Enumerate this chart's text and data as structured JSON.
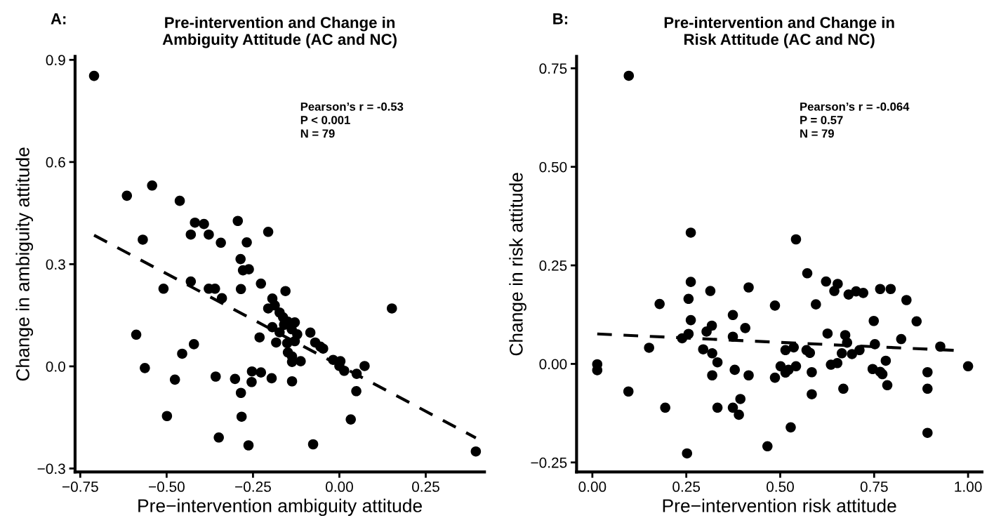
{
  "chart_data": [
    {
      "type": "scatter",
      "title": "Pre-intervention and Change in\nAmbiguity Attitude (AC and NC)",
      "xlabel": "Pre−intervention ambiguity attitude",
      "ylabel": "Change in ambiguity attitude",
      "annotations": [
        "A:",
        "Pearson’s r = -0.53\nP < 0.001\nN = 79"
      ],
      "xlim": [
        -0.765,
        0.42
      ],
      "ylim": [
        -0.31,
        0.91
      ],
      "xticks": [
        {
          "value": -0.75,
          "label": "−0.75"
        },
        {
          "value": -0.5,
          "label": "−0.50"
        },
        {
          "value": -0.25,
          "label": "−0.25"
        },
        {
          "value": 0,
          "label": "0.00"
        },
        {
          "value": 0.25,
          "label": "0.25"
        }
      ],
      "yticks": [
        {
          "value": -0.3,
          "label": "−0.3"
        },
        {
          "value": 0,
          "label": "0.0"
        },
        {
          "value": 0.3,
          "label": "0.3"
        },
        {
          "value": 0.6,
          "label": "0.6"
        },
        {
          "value": 0.9,
          "label": "0.9"
        }
      ],
      "series": [
        {
          "marker": "circle",
          "color": "#000000",
          "x": [
            -0.71,
            -0.615,
            -0.542,
            -0.462,
            -0.569,
            -0.418,
            -0.392,
            -0.43,
            -0.378,
            -0.343,
            -0.294,
            -0.268,
            -0.206,
            -0.286,
            -0.279,
            -0.262,
            -0.43,
            -0.509,
            -0.378,
            -0.36,
            -0.285,
            -0.34,
            -0.227,
            -0.194,
            -0.187,
            -0.206,
            -0.194,
            -0.231,
            -0.183,
            -0.588,
            -0.421,
            -0.455,
            -0.563,
            -0.476,
            -0.358,
            -0.302,
            -0.253,
            -0.227,
            -0.254,
            -0.196,
            -0.285,
            -0.499,
            -0.283,
            -0.349,
            -0.263,
            -0.156,
            -0.173,
            -0.163,
            -0.149,
            -0.129,
            -0.16,
            -0.138,
            -0.173,
            -0.122,
            -0.151,
            -0.129,
            -0.149,
            -0.137,
            -0.137,
            -0.112,
            -0.084,
            -0.07,
            -0.055,
            -0.047,
            -0.018,
            0.003,
            0.0,
            0.014,
            0.073,
            0.05,
            0.049,
            0.033,
            0.152,
            -0.076,
            0.395,
            -0.137
          ],
          "values": [
            0.853,
            0.501,
            0.531,
            0.486,
            0.372,
            0.422,
            0.418,
            0.387,
            0.387,
            0.363,
            0.427,
            0.364,
            0.395,
            0.315,
            0.282,
            0.285,
            0.249,
            0.228,
            0.228,
            0.228,
            0.227,
            0.2,
            0.243,
            0.199,
            0.179,
            0.17,
            0.115,
            0.085,
            0.07,
            0.093,
            0.065,
            0.037,
            -0.005,
            -0.039,
            -0.03,
            -0.037,
            -0.015,
            -0.018,
            -0.046,
            -0.035,
            -0.078,
            -0.146,
            -0.148,
            -0.209,
            -0.232,
            0.221,
            0.158,
            0.144,
            0.131,
            0.129,
            0.122,
            0.109,
            0.1,
            0.094,
            0.068,
            0.074,
            0.041,
            0.029,
            0.013,
            0.015,
            0.099,
            0.07,
            0.058,
            0.052,
            0.019,
            0.015,
            0.001,
            -0.013,
            0.001,
            -0.022,
            -0.073,
            -0.156,
            0.17,
            -0.229,
            -0.25,
            -0.044
          ]
        },
        {
          "type": "line",
          "color": "#000000",
          "line_style": "dashed",
          "x": [
            -0.71,
            0.395
          ],
          "values": [
            0.385,
            -0.21
          ]
        }
      ]
    },
    {
      "type": "scatter",
      "title": "Pre-intervention and Change in\nRisk Attitude (AC and NC)",
      "xlabel": "Pre−intervention risk attitude",
      "ylabel": "Change in risk attitude",
      "annotations": [
        "B:",
        "Pearson’s r = -0.064\nP = 0.57\nN = 79"
      ],
      "xlim": [
        -0.042,
        1.037
      ],
      "ylim": [
        -0.274,
        0.78
      ],
      "xticks": [
        {
          "value": 0,
          "label": "0.00"
        },
        {
          "value": 0.25,
          "label": "0.25"
        },
        {
          "value": 0.5,
          "label": "0.50"
        },
        {
          "value": 0.75,
          "label": "0.75"
        },
        {
          "value": 1,
          "label": "1.00"
        }
      ],
      "yticks": [
        {
          "value": -0.25,
          "label": "−0.25"
        },
        {
          "value": 0,
          "label": "0.00"
        },
        {
          "value": 0.25,
          "label": "0.25"
        },
        {
          "value": 0.5,
          "label": "0.50"
        },
        {
          "value": 0.75,
          "label": "0.75"
        }
      ],
      "series": [
        {
          "marker": "circle",
          "color": "#000000",
          "x": [
            0.097,
            0.262,
            0.262,
            0.256,
            0.179,
            0.262,
            0.256,
            0.239,
            0.151,
            0.013,
            0.013,
            0.096,
            0.194,
            0.252,
            0.314,
            0.318,
            0.304,
            0.295,
            0.319,
            0.333,
            0.319,
            0.333,
            0.374,
            0.374,
            0.407,
            0.416,
            0.379,
            0.416,
            0.394,
            0.374,
            0.39,
            0.466,
            0.486,
            0.486,
            0.542,
            0.572,
            0.622,
            0.653,
            0.644,
            0.682,
            0.702,
            0.721,
            0.766,
            0.794,
            0.836,
            0.595,
            0.749,
            0.863,
            0.626,
            0.673,
            0.678,
            0.822,
            0.752,
            0.926,
            0.514,
            0.536,
            0.57,
            0.579,
            0.664,
            0.691,
            0.711,
            0.781,
            0.501,
            0.522,
            0.514,
            0.542,
            0.635,
            0.652,
            0.746,
            0.766,
            0.772,
            0.584,
            0.584,
            0.785,
            0.668,
            0.892,
            0.892,
            1.0,
            0.528,
            0.892
          ],
          "values": [
            0.731,
            0.333,
            0.208,
            0.165,
            0.152,
            0.111,
            0.076,
            0.065,
            0.041,
            -0.001,
            -0.016,
            -0.07,
            -0.111,
            -0.227,
            0.185,
            0.097,
            0.082,
            0.037,
            0.027,
            0.004,
            -0.029,
            -0.111,
            0.124,
            0.069,
            0.091,
            0.194,
            -0.015,
            -0.029,
            -0.089,
            -0.111,
            -0.129,
            -0.209,
            0.148,
            -0.035,
            0.316,
            0.23,
            0.209,
            0.203,
            0.185,
            0.176,
            0.184,
            0.18,
            0.19,
            0.19,
            0.162,
            0.151,
            0.109,
            0.108,
            0.077,
            0.073,
            0.054,
            0.063,
            0.05,
            0.044,
            0.035,
            0.042,
            0.035,
            0.028,
            0.027,
            0.025,
            0.035,
            0.008,
            -0.006,
            -0.015,
            -0.022,
            -0.006,
            -0.002,
            0.002,
            -0.013,
            -0.02,
            -0.026,
            -0.021,
            -0.077,
            -0.054,
            -0.063,
            -0.021,
            -0.063,
            -0.006,
            -0.161,
            -0.175
          ]
        },
        {
          "type": "line",
          "color": "#000000",
          "line_style": "dashed",
          "x": [
            0.013,
            0.97
          ],
          "values": [
            0.076,
            0.034
          ]
        }
      ]
    }
  ]
}
